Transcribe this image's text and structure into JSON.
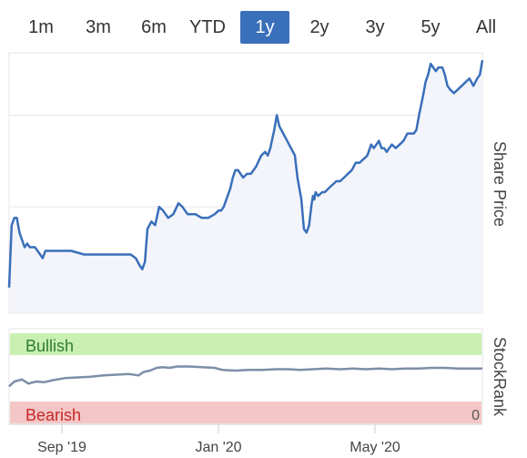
{
  "range_selector": {
    "buttons": [
      "1m",
      "3m",
      "6m",
      "YTD",
      "1y",
      "2y",
      "3y",
      "5y",
      "All"
    ],
    "active": "1y",
    "active_color": "#3a6fba"
  },
  "chart_data": [
    {
      "type": "area",
      "ylabel": "Share Price",
      "ylim": [
        21,
        92
      ],
      "yticks": [
        25,
        50,
        75
      ],
      "grid": true,
      "x_ticks": [
        "Sep '19",
        "Jan '20",
        "May '20"
      ],
      "xlim": [
        "2019-07-24",
        "2020-07-24"
      ],
      "line_color": "#3a6fba",
      "fill_color": "#f3f5fa",
      "series": [
        {
          "x": [
            "2019-07-24",
            "2019-07-26",
            "2019-07-28",
            "2019-07-30",
            "2019-08-01",
            "2019-08-03",
            "2019-08-05",
            "2019-08-07",
            "2019-08-09",
            "2019-08-13",
            "2019-08-17",
            "2019-08-19",
            "2019-08-21",
            "2019-08-25",
            "2019-09-01",
            "2019-09-10",
            "2019-09-20",
            "2019-10-01",
            "2019-10-10",
            "2019-10-20",
            "2019-10-26",
            "2019-10-30",
            "2019-11-02",
            "2019-11-04",
            "2019-11-06",
            "2019-11-08",
            "2019-11-11",
            "2019-11-14",
            "2019-11-17",
            "2019-11-20",
            "2019-11-24",
            "2019-11-28",
            "2019-12-02",
            "2019-12-05",
            "2019-12-09",
            "2019-12-15",
            "2019-12-20",
            "2019-12-25",
            "2019-12-30",
            "2020-01-02",
            "2020-01-04",
            "2020-01-06",
            "2020-01-09",
            "2020-01-11",
            "2020-01-13",
            "2020-01-15",
            "2020-01-17",
            "2020-01-19",
            "2020-01-21",
            "2020-01-24",
            "2020-01-27",
            "2020-01-31",
            "2020-02-04",
            "2020-02-07",
            "2020-02-09",
            "2020-02-11",
            "2020-02-14",
            "2020-02-16",
            "2020-02-18",
            "2020-02-21",
            "2020-02-24",
            "2020-02-27",
            "2020-03-01",
            "2020-03-03",
            "2020-03-06",
            "2020-03-08",
            "2020-03-10",
            "2020-03-12",
            "2020-03-13",
            "2020-03-14",
            "2020-03-15",
            "2020-03-16",
            "2020-03-17",
            "2020-03-19",
            "2020-03-22",
            "2020-03-24",
            "2020-03-27",
            "2020-03-30",
            "2020-04-02",
            "2020-04-05",
            "2020-04-08",
            "2020-04-11",
            "2020-04-14",
            "2020-04-17",
            "2020-04-20",
            "2020-04-23",
            "2020-04-26",
            "2020-04-29",
            "2020-05-01",
            "2020-05-03",
            "2020-05-05",
            "2020-05-07",
            "2020-05-09",
            "2020-05-11",
            "2020-05-13",
            "2020-05-15",
            "2020-05-18",
            "2020-05-21",
            "2020-05-24",
            "2020-05-27",
            "2020-05-29",
            "2020-06-01",
            "2020-06-03",
            "2020-06-05",
            "2020-06-08",
            "2020-06-10",
            "2020-06-12",
            "2020-06-14",
            "2020-06-16",
            "2020-06-18",
            "2020-06-20",
            "2020-06-23",
            "2020-06-25",
            "2020-06-27",
            "2020-06-29",
            "2020-07-02",
            "2020-07-05",
            "2020-07-08",
            "2020-07-11",
            "2020-07-14",
            "2020-07-17",
            "2020-07-20",
            "2020-07-22",
            "2020-07-24"
          ],
          "values": [
            28,
            45,
            47,
            47,
            43,
            41,
            39,
            40,
            39,
            39,
            37,
            36,
            38,
            38,
            38,
            38,
            37,
            37,
            37,
            37,
            37,
            36,
            34,
            33,
            35,
            44,
            46,
            45,
            50,
            49,
            47,
            48,
            51,
            50,
            48,
            48,
            47,
            47,
            48,
            49,
            49,
            50,
            53,
            55,
            58,
            60,
            60,
            59,
            58,
            59,
            59,
            61,
            64,
            65,
            64,
            66,
            71,
            75,
            72,
            70,
            68,
            66,
            64,
            58,
            52,
            44,
            43,
            45,
            48,
            51,
            53,
            52,
            54,
            53,
            54,
            54,
            55,
            56,
            57,
            57,
            58,
            59,
            60,
            62,
            62,
            63,
            64,
            67,
            66,
            67,
            68,
            66,
            66,
            65,
            66,
            67,
            66,
            67,
            68,
            70,
            70,
            70,
            71,
            75,
            80,
            84,
            86,
            89,
            88,
            87,
            88,
            88,
            86,
            83,
            82,
            81,
            82,
            83,
            84,
            85,
            83,
            85,
            86,
            90
          ]
        }
      ]
    },
    {
      "type": "line",
      "ylabel": "StockRank",
      "bands": [
        {
          "label": "Bullish",
          "color": "#c9f0b0",
          "text_color": "#2e7d32"
        },
        {
          "label": "Bearish",
          "color": "#f4c6c6",
          "text_color": "#c62828"
        }
      ],
      "ylim": [
        0,
        100
      ],
      "yticks": [
        0
      ],
      "line_color": "#7d8ea8",
      "series": [
        {
          "x": [
            "2019-07-24",
            "2019-07-28",
            "2019-08-03",
            "2019-08-08",
            "2019-08-14",
            "2019-08-20",
            "2019-08-27",
            "2019-09-05",
            "2019-09-15",
            "2019-09-25",
            "2019-10-05",
            "2019-10-15",
            "2019-10-25",
            "2019-11-01",
            "2019-11-05",
            "2019-11-10",
            "2019-11-15",
            "2019-11-20",
            "2019-11-25",
            "2019-12-01",
            "2019-12-10",
            "2019-12-20",
            "2019-12-30",
            "2020-01-05",
            "2020-01-15",
            "2020-01-25",
            "2020-02-05",
            "2020-02-15",
            "2020-02-25",
            "2020-03-05",
            "2020-03-15",
            "2020-03-25",
            "2020-04-05",
            "2020-04-15",
            "2020-04-25",
            "2020-05-05",
            "2020-05-15",
            "2020-05-25",
            "2020-06-05",
            "2020-06-15",
            "2020-06-25",
            "2020-07-05",
            "2020-07-15",
            "2020-07-24"
          ],
          "values": [
            37,
            44,
            47,
            41,
            44,
            43,
            46,
            49,
            50,
            51,
            53,
            54,
            55,
            53,
            58,
            60,
            64,
            65,
            64,
            66,
            66,
            65,
            64,
            61,
            60,
            61,
            61,
            62,
            62,
            61,
            62,
            63,
            62,
            63,
            62,
            63,
            62,
            63,
            63,
            64,
            64,
            63,
            63,
            63
          ]
        }
      ]
    }
  ]
}
